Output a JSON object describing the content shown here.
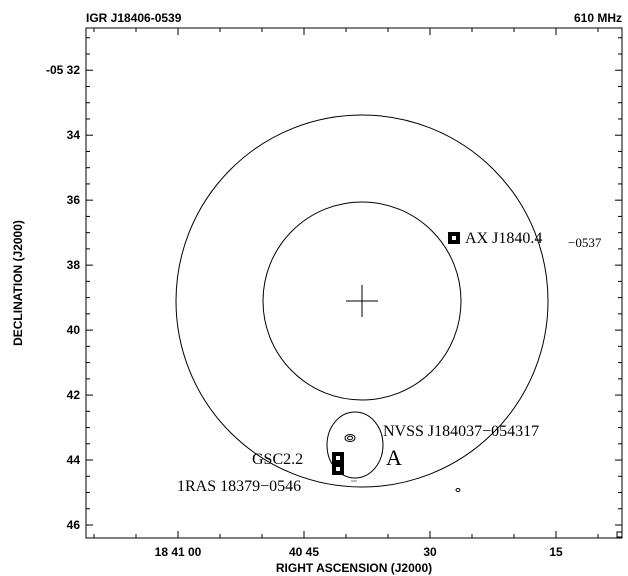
{
  "header": {
    "title_left": "IGR J18406-0539",
    "title_right": "610 MHz"
  },
  "chart_data": {
    "type": "scatter",
    "xlabel": "RIGHT ASCENSION (J2000)",
    "ylabel": "DECLINATION (J2000)",
    "x_ticks": [
      "18 41 00",
      "40 45",
      "30",
      "15"
    ],
    "y_ticks": [
      "-05 32",
      "34",
      "36",
      "38",
      "40",
      "42",
      "44",
      "46"
    ],
    "ylim": [
      46.4,
      30.7
    ],
    "grid": false,
    "annotations": [
      {
        "label": "AX J1840.4",
        "label_suffix": "−0537"
      },
      {
        "label": "NVSS J184037−054317"
      },
      {
        "label": "A"
      },
      {
        "label": "GSC2.2"
      },
      {
        "label": "1RAS 18379−0546"
      }
    ]
  }
}
